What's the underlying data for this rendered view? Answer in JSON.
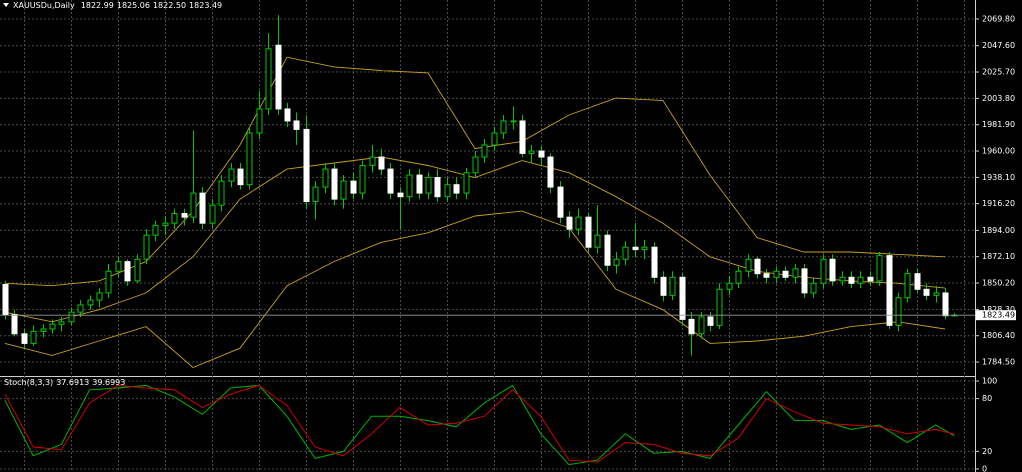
{
  "chart_data": [
    {
      "type": "candlestick",
      "title": "XAUUSDu,Daily",
      "last_bar_labels": [
        "1822.99",
        "1825.06",
        "1822.50",
        "1823.49"
      ],
      "open": [
        1849,
        1824,
        1808,
        1800,
        1810,
        1812,
        1816,
        1818,
        1826,
        1832,
        1836,
        1842,
        1860,
        1868,
        1852,
        1870,
        1890,
        1898,
        1900,
        1908,
        1905,
        1925,
        1900,
        1915,
        1935,
        1945,
        1932,
        1975,
        1995,
        2048,
        1995,
        1985,
        1978,
        1918,
        1930,
        1945,
        1920,
        1935,
        1925,
        1948,
        1955,
        1945,
        1925,
        1922,
        1940,
        1925,
        1938,
        1922,
        1932,
        1925,
        1942,
        1955,
        1965,
        1975,
        1985,
        1985,
        1958,
        1960,
        1955,
        1930,
        1905,
        1895,
        1905,
        1880,
        1890,
        1865,
        1870,
        1880,
        1878,
        1880,
        1855,
        1840,
        1855,
        1820,
        1808,
        1822,
        1815,
        1845,
        1850,
        1860,
        1870,
        1858,
        1855,
        1860,
        1855,
        1862,
        1842,
        1850,
        1870,
        1852,
        1855,
        1850,
        1855,
        1852,
        1873,
        1815,
        1838,
        1858,
        1845,
        1840,
        1842,
        1822.99
      ],
      "high": [
        1852,
        1828,
        1812,
        1815,
        1816,
        1820,
        1822,
        1830,
        1836,
        1840,
        1846,
        1866,
        1872,
        1870,
        1874,
        1895,
        1902,
        1906,
        1912,
        1912,
        1977,
        1930,
        1920,
        1940,
        1950,
        1950,
        1980,
        2010,
        2058,
        2073,
        2000,
        1992,
        1990,
        1935,
        1950,
        1950,
        1940,
        1942,
        1952,
        1965,
        1962,
        1950,
        1930,
        1945,
        1945,
        1942,
        1945,
        1938,
        1938,
        1946,
        1960,
        1970,
        1980,
        1990,
        1997,
        1990,
        1965,
        1964,
        1958,
        1935,
        1910,
        1912,
        1908,
        1915,
        1894,
        1876,
        1885,
        1900,
        1886,
        1884,
        1860,
        1860,
        1858,
        1826,
        1826,
        1826,
        1850,
        1856,
        1864,
        1874,
        1872,
        1862,
        1864,
        1864,
        1866,
        1866,
        1854,
        1874,
        1874,
        1860,
        1860,
        1860,
        1860,
        1876,
        1876,
        1842,
        1862,
        1862,
        1850,
        1848,
        1846,
        1825.06
      ],
      "low": [
        1820,
        1806,
        1795,
        1798,
        1805,
        1808,
        1810,
        1815,
        1822,
        1828,
        1830,
        1838,
        1855,
        1848,
        1850,
        1866,
        1885,
        1890,
        1895,
        1898,
        1900,
        1895,
        1896,
        1910,
        1930,
        1928,
        1928,
        1970,
        1990,
        1990,
        1980,
        1965,
        1912,
        1903,
        1925,
        1915,
        1912,
        1920,
        1920,
        1942,
        1940,
        1920,
        1895,
        1918,
        1920,
        1920,
        1918,
        1918,
        1920,
        1920,
        1938,
        1950,
        1960,
        1970,
        1978,
        1955,
        1950,
        1948,
        1925,
        1900,
        1888,
        1890,
        1876,
        1875,
        1860,
        1858,
        1865,
        1872,
        1870,
        1850,
        1835,
        1836,
        1815,
        1790,
        1804,
        1810,
        1812,
        1840,
        1846,
        1855,
        1854,
        1850,
        1850,
        1852,
        1850,
        1838,
        1838,
        1846,
        1848,
        1848,
        1846,
        1846,
        1848,
        1848,
        1812,
        1810,
        1834,
        1842,
        1836,
        1834,
        1820,
        1822.5
      ],
      "close": [
        1824,
        1808,
        1800,
        1810,
        1812,
        1816,
        1818,
        1826,
        1832,
        1836,
        1842,
        1860,
        1868,
        1852,
        1870,
        1890,
        1898,
        1900,
        1908,
        1905,
        1925,
        1900,
        1915,
        1935,
        1945,
        1932,
        1975,
        1995,
        2045,
        1995,
        1985,
        1978,
        1918,
        1930,
        1945,
        1920,
        1935,
        1925,
        1948,
        1955,
        1945,
        1925,
        1922,
        1940,
        1925,
        1938,
        1922,
        1932,
        1925,
        1942,
        1955,
        1965,
        1975,
        1985,
        1985,
        1958,
        1960,
        1955,
        1930,
        1905,
        1895,
        1905,
        1880,
        1890,
        1865,
        1870,
        1880,
        1878,
        1880,
        1855,
        1840,
        1855,
        1820,
        1808,
        1822,
        1815,
        1845,
        1850,
        1860,
        1870,
        1858,
        1855,
        1860,
        1855,
        1862,
        1842,
        1850,
        1870,
        1852,
        1855,
        1850,
        1855,
        1852,
        1873,
        1815,
        1838,
        1858,
        1845,
        1840,
        1842,
        1823,
        1823.49
      ],
      "bull_color": "#00c800",
      "bear_color": "#ffffff",
      "wick_color": "#00c800",
      "bands": {
        "color": "#c8a01e",
        "x": [
          0,
          5,
          10,
          15,
          20,
          25,
          30,
          35,
          40,
          45,
          50,
          55,
          60,
          65,
          70,
          75,
          80,
          85,
          90,
          95,
          100
        ],
        "upper": [
          1850,
          1848,
          1852,
          1868,
          1910,
          1965,
          2038,
          2030,
          2027,
          2025,
          1962,
          1968,
          1990,
          2004,
          2002,
          1940,
          1888,
          1876,
          1876,
          1874,
          1872
        ],
        "middle": [
          1826,
          1818,
          1828,
          1842,
          1872,
          1920,
          1945,
          1950,
          1955,
          1948,
          1938,
          1952,
          1942,
          1922,
          1900,
          1872,
          1860,
          1855,
          1852,
          1850,
          1846
        ],
        "lower": [
          1800,
          1790,
          1802,
          1814,
          1780,
          1796,
          1848,
          1868,
          1884,
          1892,
          1906,
          1910,
          1896,
          1845,
          1828,
          1800,
          1802,
          1806,
          1814,
          1818,
          1812
        ]
      },
      "xlim": [
        -0.53,
        103.19
      ],
      "ylim": [
        1772.9,
        2085.6
      ],
      "yticks": [
        {
          "value": 2069.8,
          "label": "2069.80"
        },
        {
          "value": 2047.6,
          "label": "2047.60"
        },
        {
          "value": 2025.7,
          "label": "2025.70"
        },
        {
          "value": 2003.8,
          "label": "2003.80"
        },
        {
          "value": 1981.9,
          "label": "1981.90"
        },
        {
          "value": 1960,
          "label": "1960.00"
        },
        {
          "value": 1938.1,
          "label": "1938.10"
        },
        {
          "value": 1916.2,
          "label": "1916.20"
        },
        {
          "value": 1894,
          "label": "1894.00"
        },
        {
          "value": 1872.1,
          "label": "1872.10"
        },
        {
          "value": 1850.2,
          "label": "1850.20"
        },
        {
          "value": 1828.3,
          "label": "1828.30"
        },
        {
          "value": 1806.4,
          "label": "1806.40"
        },
        {
          "value": 1784.5,
          "label": "1784.50"
        }
      ],
      "grid": true
    },
    {
      "type": "line",
      "title": "Stoch(8,3,3)",
      "x": [
        0,
        3,
        6,
        9,
        12,
        15,
        18,
        21,
        24,
        27,
        30,
        33,
        36,
        39,
        42,
        45,
        48,
        51,
        54,
        57,
        60,
        63,
        66,
        69,
        72,
        75,
        78,
        81,
        84,
        87,
        90,
        93,
        96,
        99,
        101
      ],
      "series": [
        {
          "color": "#00b400",
          "values": [
            78,
            15,
            28,
            90,
            92,
            95,
            82,
            62,
            92,
            95,
            60,
            12,
            20,
            60,
            60,
            55,
            48,
            75,
            95,
            40,
            5,
            10,
            40,
            18,
            20,
            12,
            50,
            88,
            55,
            55,
            45,
            50,
            30,
            50,
            37.6913
          ]
        },
        {
          "color": "#d20000",
          "values": [
            85,
            25,
            22,
            75,
            95,
            92,
            90,
            70,
            85,
            95,
            72,
            25,
            15,
            40,
            70,
            50,
            52,
            60,
            90,
            60,
            10,
            8,
            30,
            28,
            18,
            15,
            35,
            80,
            65,
            52,
            50,
            48,
            40,
            45,
            39.6993
          ]
        }
      ],
      "xlim": [
        -0.53,
        103.19
      ],
      "ylim": [
        -3.4,
        103.4
      ],
      "yticks": [
        100,
        80,
        20,
        0
      ],
      "grid": true
    }
  ]
}
